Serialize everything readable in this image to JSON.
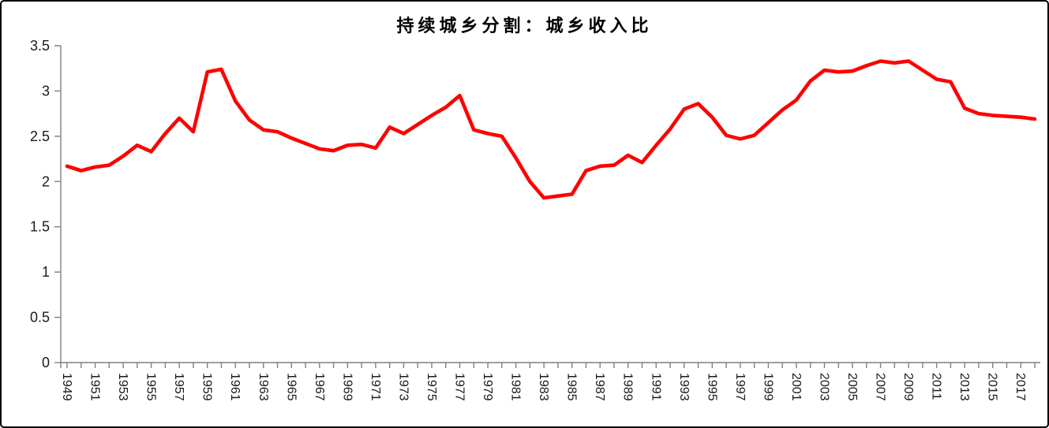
{
  "figure": {
    "title": "持续城乡分割：城乡收入比"
  },
  "chart_data": {
    "type": "line",
    "title": "持续城乡分割：城乡收入比",
    "series_name": "城乡收入比",
    "x": [
      1949,
      1950,
      1951,
      1952,
      1953,
      1954,
      1955,
      1956,
      1957,
      1958,
      1959,
      1960,
      1961,
      1962,
      1963,
      1964,
      1965,
      1966,
      1967,
      1968,
      1969,
      1970,
      1971,
      1972,
      1973,
      1974,
      1975,
      1976,
      1977,
      1978,
      1979,
      1980,
      1981,
      1982,
      1983,
      1984,
      1985,
      1986,
      1987,
      1988,
      1989,
      1990,
      1991,
      1992,
      1993,
      1994,
      1995,
      1996,
      1997,
      1998,
      1999,
      2000,
      2001,
      2002,
      2003,
      2004,
      2005,
      2006,
      2007,
      2008,
      2009,
      2010,
      2011,
      2012,
      2013,
      2014,
      2015,
      2016,
      2017,
      2018
    ],
    "series": [
      {
        "name": "城乡收入比",
        "values": [
          2.17,
          2.12,
          2.16,
          2.18,
          2.28,
          2.4,
          2.33,
          2.53,
          2.7,
          2.55,
          3.21,
          3.24,
          2.89,
          2.68,
          2.57,
          2.55,
          2.48,
          2.42,
          2.36,
          2.34,
          2.4,
          2.41,
          2.37,
          2.6,
          2.53,
          2.63,
          2.73,
          2.82,
          2.95,
          2.57,
          2.53,
          2.5,
          2.26,
          2.0,
          1.82,
          1.84,
          1.86,
          2.12,
          2.17,
          2.18,
          2.29,
          2.21,
          2.4,
          2.58,
          2.8,
          2.86,
          2.71,
          2.51,
          2.47,
          2.51,
          2.65,
          2.79,
          2.9,
          3.11,
          3.23,
          3.21,
          3.22,
          3.28,
          3.33,
          3.31,
          3.33,
          3.23,
          3.13,
          3.1,
          2.81,
          2.75,
          2.73,
          2.72,
          2.71,
          2.69
        ]
      }
    ],
    "xtick_labels": [
      "1949",
      "1951",
      "1953",
      "1955",
      "1957",
      "1959",
      "1961",
      "1963",
      "1965",
      "1967",
      "1969",
      "1971",
      "1973",
      "1975",
      "1977",
      "1979",
      "1981",
      "1983",
      "1985",
      "1987",
      "1989",
      "1991",
      "1993",
      "1995",
      "1997",
      "1999",
      "2001",
      "2003",
      "2005",
      "2007",
      "2009",
      "2011",
      "2013",
      "2015",
      "2017"
    ],
    "ytick_labels": [
      "0",
      "0.5",
      "1",
      "1.5",
      "2",
      "2.5",
      "3",
      "3.5"
    ],
    "ylim": [
      0,
      3.5
    ],
    "xlabel": "",
    "ylabel": "",
    "grid": false,
    "legend": "none",
    "line_color": "#ff0000",
    "axis_color": "#808080",
    "text_color": "#1a1a1a",
    "background": "#ffffff",
    "border_color": "#000000"
  }
}
